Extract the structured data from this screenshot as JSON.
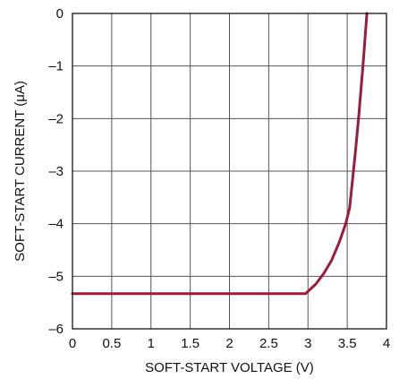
{
  "chart_data": {
    "type": "line",
    "title": "",
    "xlabel": "SOFT-START VOLTAGE (V)",
    "ylabel": "SOFT-START CURRENT (μA)",
    "xlim": [
      0,
      4
    ],
    "ylim": [
      -6,
      0
    ],
    "grid": true,
    "x_ticks": [
      {
        "value": 0,
        "label": "0"
      },
      {
        "value": 0.5,
        "label": "0.5"
      },
      {
        "value": 1,
        "label": "1"
      },
      {
        "value": 1.5,
        "label": "1.5"
      },
      {
        "value": 2,
        "label": "2"
      },
      {
        "value": 2.5,
        "label": "2.5"
      },
      {
        "value": 3,
        "label": "3"
      },
      {
        "value": 3.5,
        "label": "3.5"
      },
      {
        "value": 4,
        "label": "4"
      }
    ],
    "y_ticks": [
      {
        "value": 0,
        "label": "0"
      },
      {
        "value": -1,
        "label": "–1"
      },
      {
        "value": -2,
        "label": "–2"
      },
      {
        "value": -3,
        "label": "–3"
      },
      {
        "value": -4,
        "label": "–4"
      },
      {
        "value": -5,
        "label": "–5"
      },
      {
        "value": -6,
        "label": "–6"
      }
    ],
    "series": [
      {
        "color": "#9b1b3a",
        "x": [
          0,
          1,
          2,
          2.97,
          3.1,
          3.2,
          3.3,
          3.4,
          3.48,
          3.53,
          3.6,
          3.65,
          3.7,
          3.75
        ],
        "y": [
          -5.33,
          -5.33,
          -5.33,
          -5.33,
          -5.15,
          -4.95,
          -4.7,
          -4.35,
          -4.0,
          -3.7,
          -2.7,
          -1.9,
          -1.0,
          0.0
        ]
      }
    ]
  }
}
